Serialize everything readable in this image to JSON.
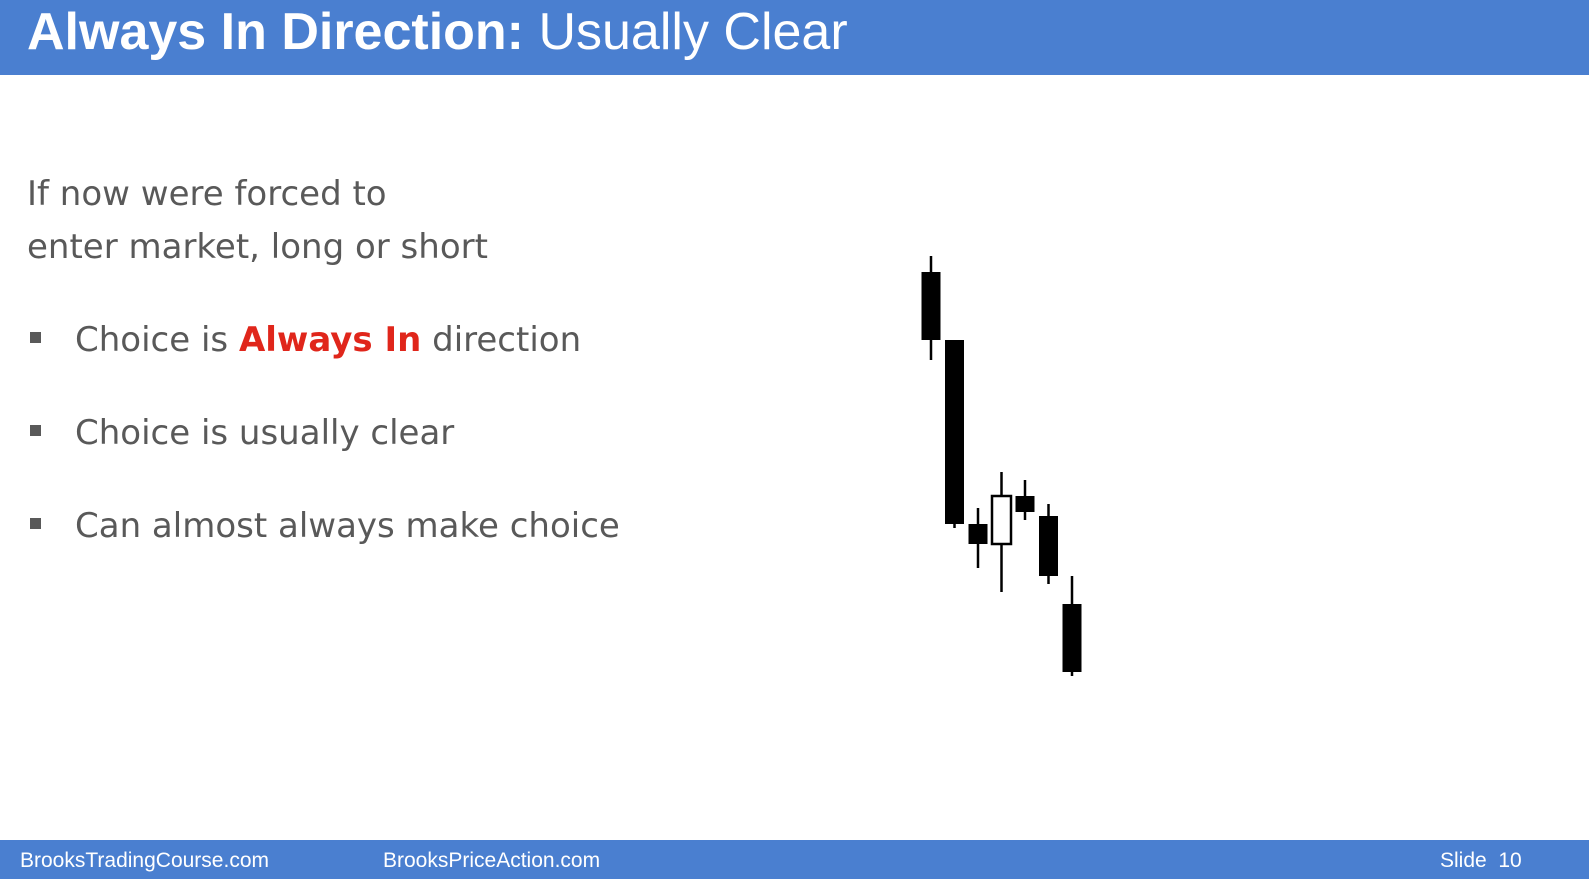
{
  "header": {
    "title_bold": "Always In Direction:",
    "title_rest": "Usually Clear",
    "background_color": "#4a7fd0"
  },
  "body": {
    "intro_line1": "If now were forced to",
    "intro_line2": "enter market, long or short",
    "bullets": [
      {
        "before": "Choice is",
        "highlight": "Always In",
        "after": "direction"
      },
      {
        "text": "Choice is usually clear"
      },
      {
        "text": "Can almost always make choice"
      }
    ],
    "highlight_color": "#e0261b",
    "bullet_marker_icon": "square-bullet-icon"
  },
  "chart_data": {
    "type": "candlestick",
    "candles": [
      {
        "open": 80,
        "high": 84,
        "low": 58,
        "close": 63,
        "direction": "bear"
      },
      {
        "open": 63,
        "high": 63,
        "low": 16,
        "close": 17,
        "direction": "bear"
      },
      {
        "open": 17,
        "high": 21,
        "low": 6,
        "close": 12,
        "direction": "bear"
      },
      {
        "open": 12,
        "high": 30,
        "low": 0,
        "close": 24,
        "direction": "bull"
      },
      {
        "open": 24,
        "high": 28,
        "low": 18,
        "close": 20,
        "direction": "bear"
      },
      {
        "open": 19,
        "high": 22,
        "low": 2,
        "close": 4,
        "direction": "bear"
      },
      {
        "open": -3,
        "high": 4,
        "low": -21,
        "close": -20,
        "direction": "bear"
      }
    ],
    "axes_visible": false
  },
  "footer": {
    "site1": "BrooksTradingCourse.com",
    "site2": "BrooksPriceAction.com",
    "slide_label": "Slide",
    "slide_number": "10"
  }
}
